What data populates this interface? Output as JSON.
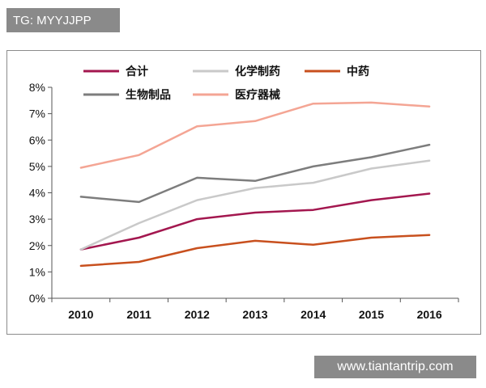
{
  "tag_text": "TG: MYYJJPP",
  "watermark_text": "www.tiantantrip.com",
  "chart_data": {
    "type": "line",
    "x": [
      "2010",
      "2011",
      "2012",
      "2013",
      "2014",
      "2015",
      "2016"
    ],
    "y_ticks": [
      "0%",
      "1%",
      "2%",
      "3%",
      "4%",
      "5%",
      "6%",
      "7%",
      "8%"
    ],
    "ylim": [
      0,
      8
    ],
    "grid": false,
    "legend_position": "top",
    "series": [
      {
        "name": "合计",
        "color": "#a3174f",
        "values": [
          1.85,
          2.3,
          3.0,
          3.25,
          3.35,
          3.72,
          3.97
        ]
      },
      {
        "name": "化学制药",
        "color": "#c9c9c9",
        "values": [
          1.85,
          2.85,
          3.72,
          4.18,
          4.38,
          4.92,
          5.22
        ]
      },
      {
        "name": "中药",
        "color": "#c8501e",
        "values": [
          1.23,
          1.38,
          1.9,
          2.18,
          2.03,
          2.3,
          2.4
        ]
      },
      {
        "name": "生物制品",
        "color": "#7d7d7d",
        "values": [
          3.85,
          3.65,
          4.57,
          4.45,
          5.0,
          5.35,
          5.82
        ]
      },
      {
        "name": "医疗器械",
        "color": "#f4a594",
        "values": [
          4.95,
          5.43,
          6.52,
          6.72,
          7.38,
          7.42,
          7.27
        ]
      }
    ]
  }
}
